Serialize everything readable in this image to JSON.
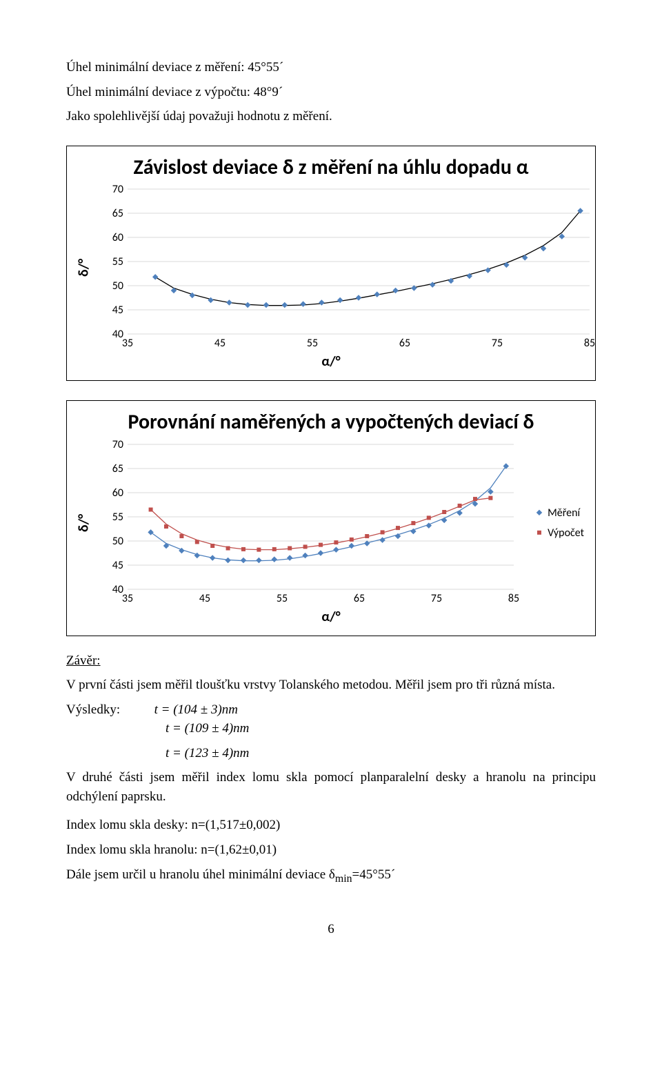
{
  "intro": {
    "line1": "Úhel minimální deviace z měření: 45°55´",
    "line2": "Úhel minimální deviace z výpočtu: 48°9´",
    "line3": "Jako spolehlivější údaj považuji hodnotu z měření."
  },
  "chart1": {
    "type": "scatter",
    "title": "Závislost deviace δ z měření na úhlu dopadu α",
    "xlabel": "α/°",
    "ylabel": "δ/°",
    "xlim": [
      35,
      85
    ],
    "ylim": [
      40,
      70
    ],
    "xticks": [
      35,
      45,
      55,
      65,
      75,
      85
    ],
    "yticks": [
      40,
      45,
      50,
      55,
      60,
      65,
      70
    ],
    "background_color": "#ffffff",
    "grid_color": "#d9d9d9",
    "gridlines": [
      45,
      50,
      55,
      60,
      65,
      70
    ],
    "marker_color": "#4f81bd",
    "marker_size": 6,
    "line_color": "#000000",
    "line_width": 1.3,
    "x": [
      38,
      40,
      42,
      44,
      46,
      48,
      50,
      52,
      54,
      56,
      58,
      60,
      62,
      64,
      66,
      68,
      70,
      72,
      74,
      76,
      78,
      80,
      82,
      84
    ],
    "y": [
      51.8,
      49.0,
      48.0,
      47.0,
      46.5,
      46.0,
      46.0,
      46.0,
      46.2,
      46.5,
      47.0,
      47.5,
      48.2,
      49.0,
      49.5,
      50.2,
      51.0,
      52.0,
      53.2,
      54.3,
      55.8,
      57.7,
      60.2,
      65.5
    ],
    "trend_y": [
      51.8,
      49.5,
      48.2,
      47.2,
      46.5,
      46.1,
      45.9,
      45.9,
      46.0,
      46.3,
      46.8,
      47.4,
      48.1,
      48.8,
      49.6,
      50.4,
      51.3,
      52.3,
      53.4,
      54.7,
      56.3,
      58.3,
      61.0,
      65.5
    ]
  },
  "chart2": {
    "type": "scatter",
    "title": "Porovnání naměřených a vypočtených deviací δ",
    "xlabel": "α/°",
    "ylabel": "δ/°",
    "xlim": [
      35,
      85
    ],
    "ylim": [
      40,
      70
    ],
    "xticks": [
      35,
      45,
      55,
      65,
      75,
      85
    ],
    "yticks": [
      40,
      45,
      50,
      55,
      60,
      65,
      70
    ],
    "background_color": "#ffffff",
    "grid_color": "#d9d9d9",
    "gridlines": [
      45,
      50,
      55,
      60,
      65,
      70
    ],
    "series": [
      {
        "label": "Měření",
        "marker_color": "#4f81bd",
        "line_color": "#4f81bd",
        "marker": "diamond",
        "marker_size": 6,
        "x": [
          38,
          40,
          42,
          44,
          46,
          48,
          50,
          52,
          54,
          56,
          58,
          60,
          62,
          64,
          66,
          68,
          70,
          72,
          74,
          76,
          78,
          80,
          82,
          84
        ],
        "y": [
          51.8,
          49.0,
          48.0,
          47.0,
          46.5,
          46.0,
          46.0,
          46.0,
          46.2,
          46.5,
          47.0,
          47.5,
          48.2,
          49.0,
          49.5,
          50.2,
          51.0,
          52.0,
          53.2,
          54.3,
          55.8,
          57.7,
          60.2,
          65.5
        ],
        "trend_y": [
          51.8,
          49.5,
          48.2,
          47.2,
          46.5,
          46.1,
          45.9,
          45.9,
          46.0,
          46.3,
          46.8,
          47.4,
          48.1,
          48.8,
          49.6,
          50.4,
          51.3,
          52.3,
          53.4,
          54.7,
          56.3,
          58.3,
          61.0,
          65.5
        ]
      },
      {
        "label": "Výpočet",
        "marker_color": "#c0504d",
        "line_color": "#c0504d",
        "marker": "square",
        "marker_size": 6,
        "x": [
          38,
          40,
          42,
          44,
          46,
          48,
          50,
          52,
          54,
          56,
          58,
          60,
          62,
          64,
          66,
          68,
          70,
          72,
          74,
          76,
          78,
          80,
          82
        ],
        "y": [
          56.5,
          53.0,
          51.0,
          49.8,
          49.0,
          48.5,
          48.3,
          48.2,
          48.3,
          48.5,
          48.8,
          49.2,
          49.7,
          50.3,
          51.0,
          51.8,
          52.7,
          53.7,
          54.8,
          56.0,
          57.3,
          58.7,
          58.9
        ],
        "trend_y": [
          56.5,
          53.5,
          51.5,
          50.2,
          49.3,
          48.7,
          48.3,
          48.2,
          48.2,
          48.4,
          48.7,
          49.1,
          49.6,
          50.2,
          50.9,
          51.7,
          52.6,
          53.6,
          54.7,
          55.9,
          57.2,
          58.5,
          58.9
        ]
      }
    ]
  },
  "conclusion": {
    "heading": "Závěr:",
    "line1": "V první části jsem měřil tloušťku vrstvy Tolanského metodou. Měřil jsem pro tři různá místa.",
    "results_label": "Výsledky:",
    "eq1": "t = (104 ± 3)nm",
    "eq2": "t = (109 ± 4)nm",
    "eq3": "t = (123 ± 4)nm",
    "line2": "V druhé části jsem měřil index lomu skla pomocí planparalelní desky a hranolu na principu odchýlení paprsku.",
    "line3": "Index lomu skla desky: n=(1,517±0,002)",
    "line4": "Index lomu skla hranolu: n=(1,62±0,01)",
    "line5": "Dále jsem určil u hranolu úhel minimální deviace δ",
    "sub": "min",
    "line5b": "=45°55´"
  },
  "page_number": "6"
}
